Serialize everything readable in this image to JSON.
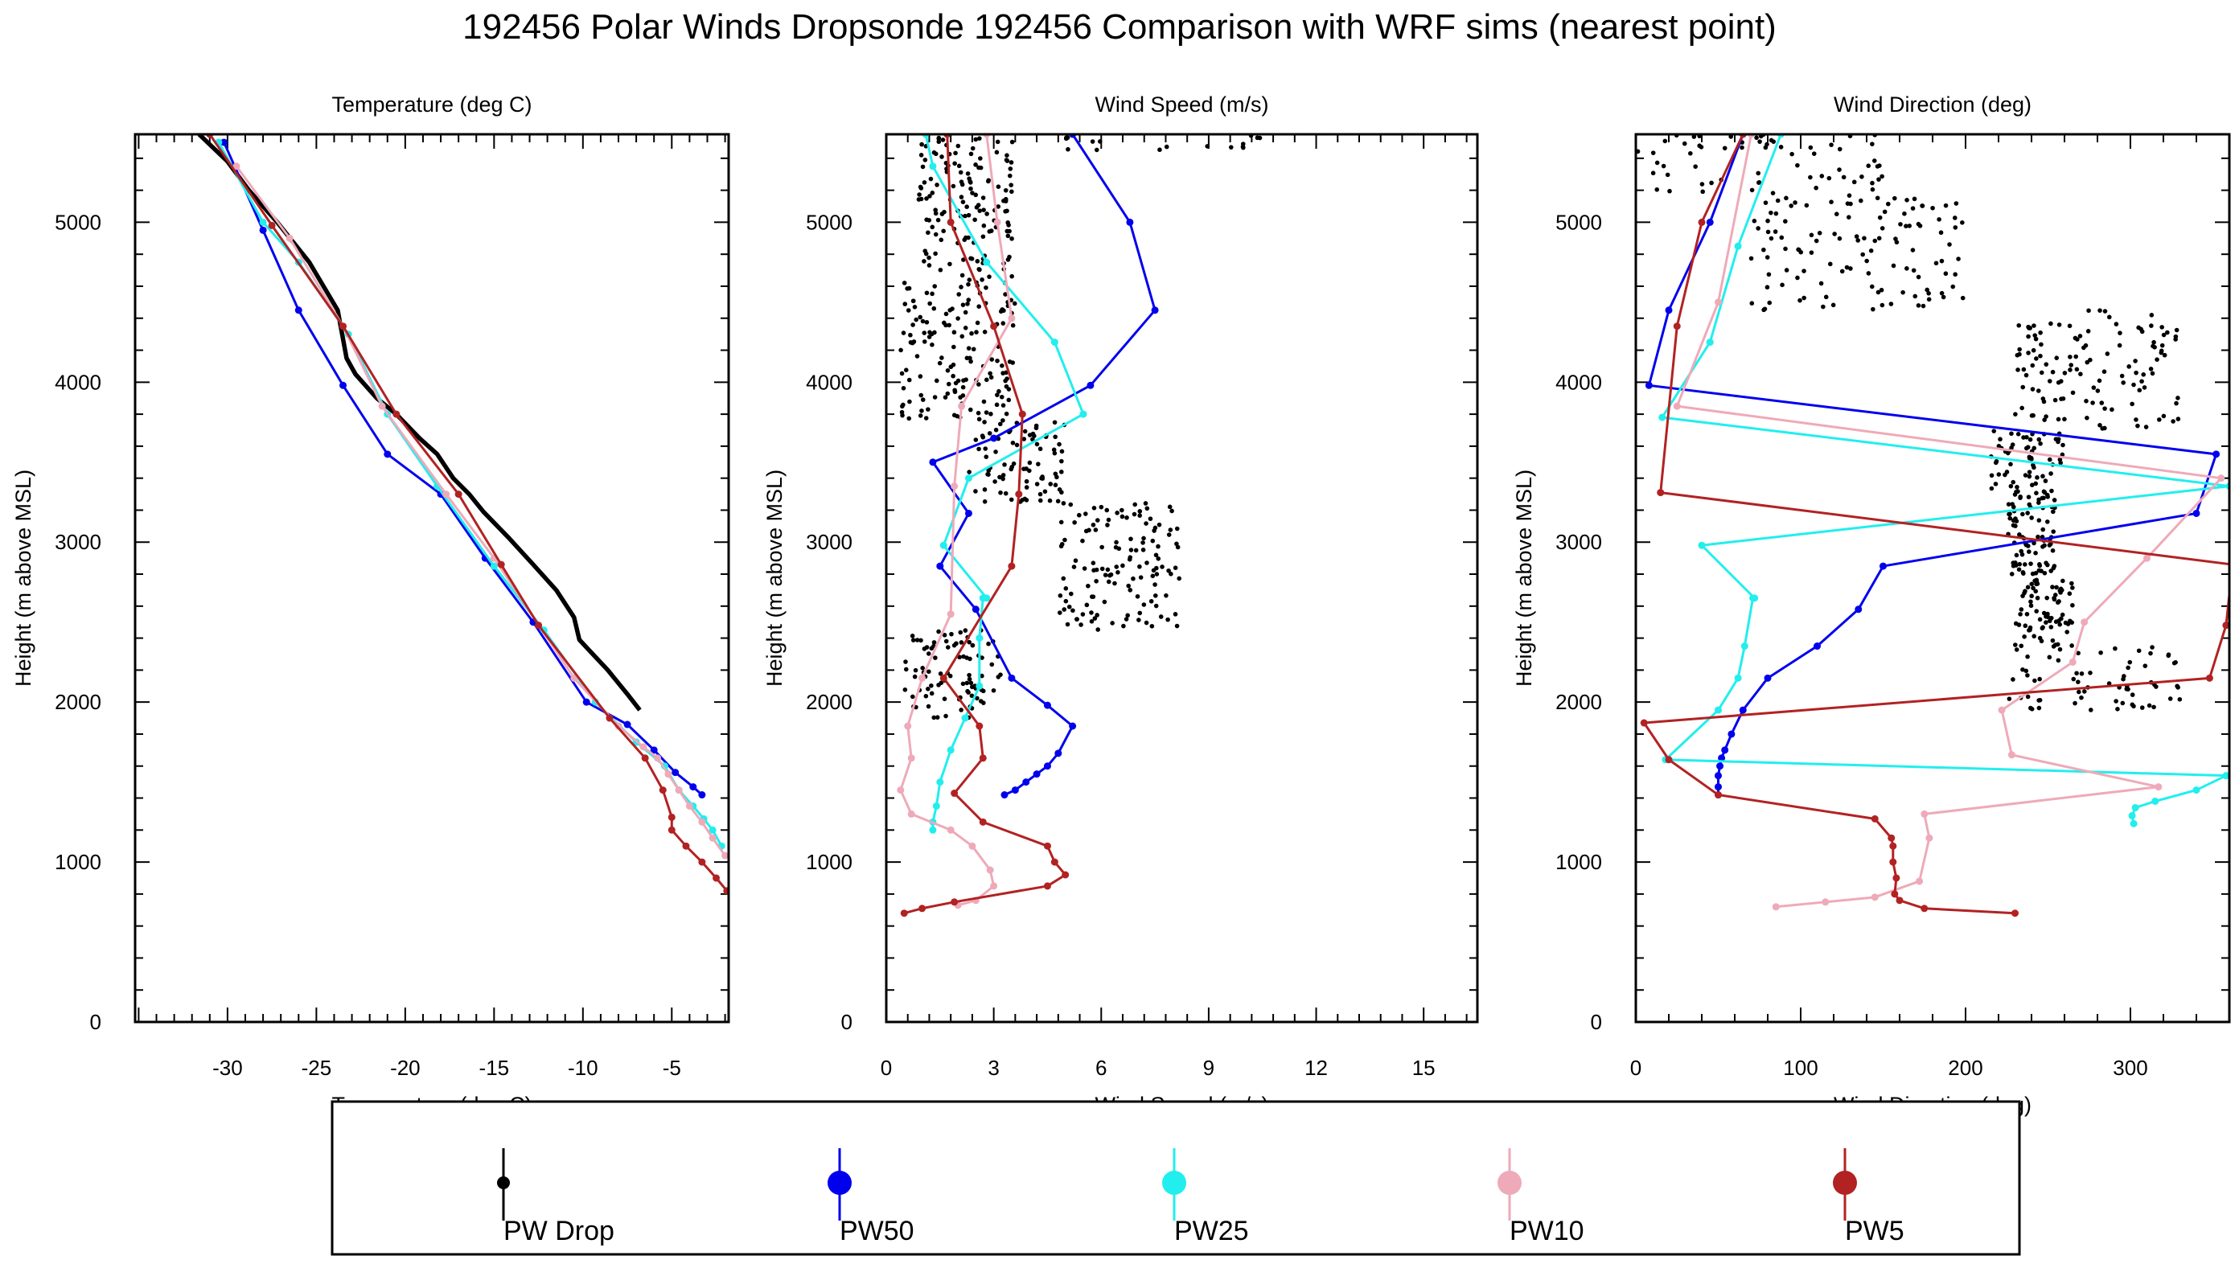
{
  "figure": {
    "title": "192456 Polar Winds Dropsonde 192456 Comparison with WRF sims (nearest point)"
  },
  "legend": {
    "items": [
      {
        "label": "PW Drop",
        "color": "#000000"
      },
      {
        "label": "PW50",
        "color": "#0000ee"
      },
      {
        "label": "PW25",
        "color": "#22eeee"
      },
      {
        "label": "PW10",
        "color": "#eeaab8"
      },
      {
        "label": "PW5",
        "color": "#b22222"
      }
    ]
  },
  "chart_data": [
    {
      "type": "line",
      "title": "Temperature (deg C)",
      "xlabel": "Temperature (deg C)",
      "ylabel": "Height (m above MSL)",
      "xlim": [
        -35.2,
        -1.8
      ],
      "ylim": [
        0,
        5550
      ],
      "xticks": [
        -30,
        -25,
        -20,
        -15,
        -10,
        -5
      ],
      "yticks": [
        0,
        1000,
        2000,
        3000,
        4000,
        5000
      ],
      "series": [
        {
          "name": "PW Drop",
          "color": "#000000",
          "style": "thick-line",
          "x": [
            -6.8,
            -7.5,
            -8.6,
            -9.7,
            -10.2,
            -10.5,
            -11.5,
            -12.8,
            -14.2,
            -15.6,
            -16.4,
            -17.3,
            -18.2,
            -19.2,
            -20.5,
            -21.6,
            -22.8,
            -23.3,
            -23.8,
            -25.4,
            -27.2,
            -28.8,
            -30.0,
            -31.6
          ],
          "y": [
            1950,
            2050,
            2200,
            2330,
            2390,
            2530,
            2700,
            2860,
            3030,
            3190,
            3300,
            3400,
            3550,
            3650,
            3800,
            3900,
            4050,
            4150,
            4450,
            4750,
            5000,
            5200,
            5380,
            5550
          ]
        },
        {
          "name": "PW50",
          "color": "#0000ee",
          "x": [
            -3.3,
            -3.8,
            -4.8,
            -6.0,
            -7.5,
            -9.8,
            -12.8,
            -15.5,
            -18.0,
            -21.0,
            -23.5,
            -26.0,
            -28.0,
            -30.2
          ],
          "y": [
            1420,
            1470,
            1560,
            1700,
            1860,
            2000,
            2500,
            2900,
            3300,
            3550,
            3980,
            4450,
            4950,
            5500
          ]
        },
        {
          "name": "PW25",
          "color": "#22eeee",
          "x": [
            -2.2,
            -2.7,
            -3.2,
            -3.8,
            -4.6,
            -5.4,
            -7.0,
            -9.3,
            -12.2,
            -15.0,
            -18.2,
            -21.0,
            -23.2,
            -26.0,
            -28.0,
            -30.5
          ],
          "y": [
            1100,
            1200,
            1270,
            1350,
            1450,
            1600,
            1750,
            2000,
            2450,
            2850,
            3350,
            3800,
            4300,
            4750,
            5000,
            5500
          ]
        },
        {
          "name": "PW10",
          "color": "#eeaab8",
          "x": [
            -2.0,
            -2.7,
            -3.3,
            -4.0,
            -4.6,
            -5.2,
            -5.8,
            -6.6,
            -8.0,
            -10.5,
            -15.0,
            -17.7,
            -21.3,
            -23.5,
            -26.5,
            -29.5
          ],
          "y": [
            1040,
            1150,
            1250,
            1350,
            1450,
            1550,
            1650,
            1720,
            1850,
            2150,
            2900,
            3300,
            3850,
            4350,
            4900,
            5350
          ]
        },
        {
          "name": "PW5",
          "color": "#b22222",
          "x": [
            -1.9,
            -2.5,
            -3.3,
            -4.2,
            -5.0,
            -5.0,
            -5.5,
            -6.5,
            -8.5,
            -12.5,
            -14.6,
            -17.0,
            -20.5,
            -23.5,
            -27.5,
            -31.0
          ],
          "y": [
            820,
            900,
            1000,
            1100,
            1200,
            1280,
            1450,
            1650,
            1900,
            2480,
            2860,
            3300,
            3800,
            4350,
            4980,
            5550
          ]
        }
      ]
    },
    {
      "type": "scatter",
      "title": "Wind Speed (m/s)",
      "xlabel": "Wind Speed (m/s)",
      "ylabel": "Height (m above MSL)",
      "xlim": [
        0,
        16.5
      ],
      "ylim": [
        0,
        5550
      ],
      "xticks": [
        0,
        3,
        6,
        9,
        12,
        15
      ],
      "yticks": [
        0,
        1000,
        2000,
        3000,
        4000,
        5000
      ],
      "series": [
        {
          "name": "PW Drop",
          "color": "#000000",
          "style": "points",
          "clusters": [
            {
              "x0": 0.5,
              "x1": 3.2,
              "y0": 1900,
              "y1": 2450
            },
            {
              "x0": 4.8,
              "x1": 8.2,
              "y0": 2450,
              "y1": 3250
            },
            {
              "x0": 2.3,
              "x1": 5.0,
              "y0": 3250,
              "y1": 3750
            },
            {
              "x0": 0.4,
              "x1": 3.6,
              "y0": 3750,
              "y1": 4700
            },
            {
              "x0": 0.9,
              "x1": 3.6,
              "y0": 4700,
              "y1": 5550
            },
            {
              "x0": 4.8,
              "x1": 11.0,
              "y0": 5450,
              "y1": 5550
            }
          ]
        },
        {
          "name": "PW50",
          "color": "#0000ee",
          "x": [
            3.3,
            3.6,
            3.9,
            4.2,
            4.5,
            4.8,
            5.2,
            4.5,
            3.5,
            2.5,
            1.5,
            2.3,
            1.3,
            3.0,
            5.7,
            7.5,
            6.8,
            5.2
          ],
          "y": [
            1420,
            1450,
            1500,
            1550,
            1600,
            1680,
            1850,
            1980,
            2150,
            2580,
            2850,
            3180,
            3500,
            3650,
            3980,
            4450,
            5000,
            5550
          ]
        },
        {
          "name": "PW25",
          "color": "#22eeee",
          "x": [
            1.3,
            1.3,
            1.4,
            1.5,
            1.8,
            2.2,
            2.6,
            2.6,
            2.7,
            2.8,
            1.6,
            2.3,
            5.5,
            4.7,
            2.8,
            1.3,
            1.1
          ],
          "y": [
            1200,
            1250,
            1350,
            1500,
            1700,
            1900,
            2100,
            2400,
            2650,
            2650,
            2980,
            3400,
            3800,
            4250,
            4750,
            5350,
            5550
          ]
        },
        {
          "name": "PW10",
          "color": "#eeaab8",
          "x": [
            2.0,
            2.5,
            3.0,
            2.9,
            2.4,
            1.8,
            0.7,
            0.4,
            0.7,
            0.6,
            1.0,
            1.8,
            1.9,
            2.1,
            3.5,
            3.1,
            2.8
          ],
          "y": [
            730,
            760,
            850,
            950,
            1100,
            1200,
            1300,
            1450,
            1650,
            1850,
            2150,
            2550,
            3350,
            3850,
            4400,
            5000,
            5550
          ]
        },
        {
          "name": "PW5",
          "color": "#b22222",
          "x": [
            0.5,
            1.0,
            1.9,
            4.5,
            5.0,
            4.7,
            4.5,
            2.7,
            1.9,
            2.7,
            2.6,
            1.6,
            3.5,
            3.7,
            3.8,
            3.0,
            1.8,
            1.7
          ],
          "y": [
            680,
            710,
            750,
            850,
            920,
            1000,
            1100,
            1250,
            1430,
            1650,
            1850,
            2150,
            2850,
            3300,
            3800,
            4350,
            5000,
            5550
          ]
        }
      ]
    },
    {
      "type": "scatter",
      "title": "Wind Direction (deg)",
      "xlabel": "Wind Direction (deg)",
      "ylabel": "Height (m above MSL)",
      "xlim": [
        0,
        360
      ],
      "ylim": [
        0,
        5550
      ],
      "xticks": [
        0,
        100,
        200,
        300
      ],
      "yticks": [
        0,
        1000,
        2000,
        3000,
        4000,
        5000
      ],
      "series": [
        {
          "name": "PW Drop",
          "color": "#000000",
          "style": "points",
          "clusters": [
            {
              "x0": 225,
              "x1": 330,
              "y0": 1950,
              "y1": 2350
            },
            {
              "x0": 230,
              "x1": 265,
              "y0": 2350,
              "y1": 2800
            },
            {
              "x0": 225,
              "x1": 255,
              "y0": 2800,
              "y1": 3300
            },
            {
              "x0": 215,
              "x1": 260,
              "y0": 3300,
              "y1": 3700
            },
            {
              "x0": 230,
              "x1": 330,
              "y0": 3700,
              "y1": 4450
            },
            {
              "x0": 70,
              "x1": 200,
              "y0": 4450,
              "y1": 5150
            },
            {
              "x0": 0,
              "x1": 150,
              "y0": 5150,
              "y1": 5550
            }
          ]
        },
        {
          "name": "PW50",
          "color": "#0000ee",
          "x": [
            50,
            50,
            50,
            51,
            52,
            54,
            58,
            65,
            80,
            110,
            135,
            150,
            340,
            352,
            8,
            20,
            45,
            65
          ],
          "y": [
            1420,
            1470,
            1540,
            1600,
            1650,
            1700,
            1800,
            1950,
            2150,
            2350,
            2580,
            2850,
            3180,
            3550,
            3980,
            4450,
            5000,
            5550
          ]
        },
        {
          "name": "PW25",
          "color": "#22eeee",
          "x": [
            302,
            301,
            303,
            315,
            340,
            358,
            18,
            50,
            62,
            66,
            71,
            72,
            40,
            360,
            16,
            45,
            62,
            88
          ],
          "y": [
            1240,
            1290,
            1340,
            1380,
            1450,
            1540,
            1640,
            1950,
            2150,
            2350,
            2650,
            2650,
            2980,
            3350,
            3780,
            4250,
            4850,
            5550
          ]
        },
        {
          "name": "PW10",
          "color": "#eeaab8",
          "x": [
            85,
            115,
            145,
            172,
            178,
            175,
            317,
            228,
            222,
            265,
            272,
            310,
            355,
            25,
            50,
            70
          ],
          "y": [
            720,
            750,
            780,
            880,
            1150,
            1300,
            1470,
            1670,
            1950,
            2250,
            2500,
            2900,
            3400,
            3850,
            4500,
            5550
          ]
        },
        {
          "name": "PW5",
          "color": "#b22222",
          "x": [
            230,
            175,
            160,
            157,
            158,
            156,
            156,
            155,
            145,
            50,
            20,
            5,
            348,
            358,
            362,
            15,
            25,
            40,
            65
          ],
          "y": [
            680,
            710,
            760,
            800,
            900,
            1000,
            1100,
            1150,
            1270,
            1420,
            1640,
            1870,
            2150,
            2480,
            2860,
            3310,
            4350,
            5000,
            5550
          ]
        }
      ]
    }
  ]
}
